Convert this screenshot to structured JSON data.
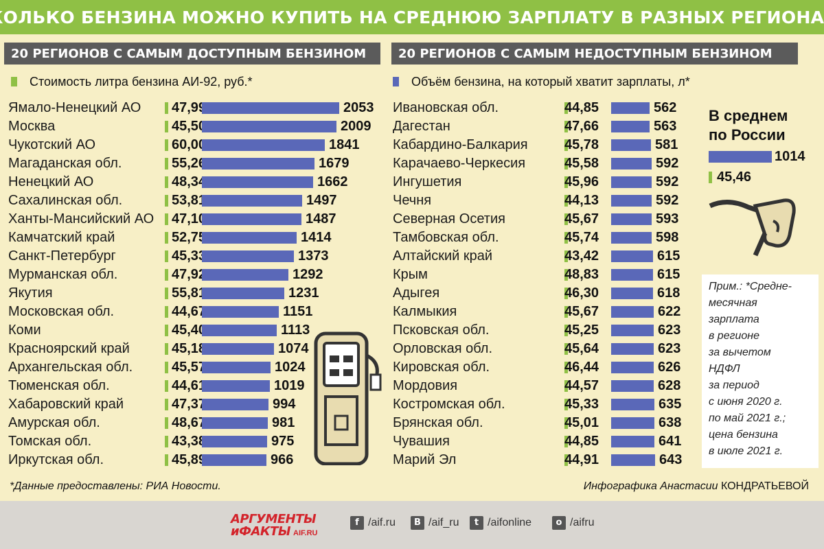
{
  "header": {
    "title": "СКОЛЬКО БЕНЗИНА МОЖНО КУПИТЬ НА СРЕДНЮЮ ЗАРПЛАТУ В РАЗНЫХ РЕГИОНАХ?"
  },
  "left_section": {
    "title": "20 РЕГИОНОВ С САМЫМ ДОСТУПНЫМ БЕНЗИНОМ"
  },
  "right_section": {
    "title": "20 РЕГИОНОВ С САМЫМ НЕДОСТУПНЫМ БЕНЗИНОМ"
  },
  "legend": {
    "price_label": "Стоимость литра бензина АИ-92, руб.*",
    "volume_label": "Объём бензина, на который хватит зарплаты, л*"
  },
  "colors": {
    "price": "#8fc045",
    "volume": "#5a68b8",
    "header": "#8fc045",
    "section": "#5b5b5b",
    "panel": "#f7efc6"
  },
  "chart_data": [
    {
      "type": "bar",
      "title": "20 РЕГИОНОВ С САМЫМ ДОСТУПНЫМ БЕНЗИНОМ",
      "categories": [
        "Ямало-Ненецкий АО",
        "Москва",
        "Чукотский АО",
        "Магаданская обл.",
        "Ненецкий АО",
        "Сахалинская обл.",
        "Ханты-Мансийский АО",
        "Камчатский край",
        "Санкт-Петербург",
        "Мурманская обл.",
        "Якутия",
        "Московская обл.",
        "Коми",
        "Красноярский край",
        "Архангельская обл.",
        "Тюменская обл.",
        "Хабаровский край",
        "Амурская обл.",
        "Томская обл.",
        "Иркутская обл."
      ],
      "series": [
        {
          "name": "Стоимость литра бензина АИ-92, руб.*",
          "values": [
            "47,99",
            "45,50",
            "60,00",
            "55,26",
            "48,34",
            "53,81",
            "47,10",
            "52,75",
            "45,33",
            "47,92",
            "55,81",
            "44,67",
            "45,40",
            "45,18",
            "45,57",
            "44,61",
            "47,37",
            "48,67",
            "43,38",
            "45,89"
          ]
        },
        {
          "name": "Объём бензина, на который хватит зарплаты, л*",
          "values": [
            2053,
            2009,
            1841,
            1679,
            1662,
            1497,
            1487,
            1414,
            1373,
            1292,
            1231,
            1151,
            1113,
            1074,
            1024,
            1019,
            994,
            981,
            975,
            966
          ]
        }
      ]
    },
    {
      "type": "bar",
      "title": "20 РЕГИОНОВ С САМЫМ НЕДОСТУПНЫМ БЕНЗИНОМ",
      "categories": [
        "Ивановская обл.",
        "Дагестан",
        "Кабардино-Балкария",
        "Карачаево-Черкесия",
        "Ингушетия",
        "Чечня",
        "Северная Осетия",
        "Тамбовская обл.",
        "Алтайский край",
        "Крым",
        "Адыгея",
        "Калмыкия",
        "Псковская обл.",
        "Орловская обл.",
        "Кировская обл.",
        "Мордовия",
        "Костромская обл.",
        "Брянская обл.",
        "Чувашия",
        "Марий Эл"
      ],
      "series": [
        {
          "name": "Стоимость литра бензина АИ-92, руб.*",
          "values": [
            "44,85",
            "47,66",
            "45,78",
            "45,58",
            "45,96",
            "44,13",
            "45,67",
            "45,74",
            "43,42",
            "48,83",
            "46,30",
            "45,67",
            "45,25",
            "45,64",
            "46,44",
            "44,57",
            "45,33",
            "45,01",
            "44,85",
            "44,91"
          ]
        },
        {
          "name": "Объём бензина, на который хватит зарплаты, л*",
          "values": [
            562,
            563,
            581,
            592,
            592,
            592,
            593,
            598,
            615,
            615,
            618,
            622,
            623,
            623,
            626,
            628,
            635,
            638,
            641,
            643
          ]
        }
      ]
    }
  ],
  "average": {
    "title": "В среднем\nпо России",
    "volume": "1014",
    "price": "45,46"
  },
  "note": "Прим.: *Средне-\nмесячная\nзарплата\nв регионе\nза вычетом\nНДФЛ\nза период\nс июня 2020 г.\nпо май 2021 г.;\nцена бензина\nв июле 2021 г.",
  "source": "*Данные предоставлены: РИА Новости.",
  "credit_prefix": "Инфографика Анастасии ",
  "credit_name": "КОНДРАТЬЕВОЙ",
  "footer": {
    "logo_top": "АРГУМЕНТЫ",
    "logo_bottom": "иФАКТЫ",
    "logo_site": "AIF.RU",
    "social": [
      {
        "icon": "facebook-icon",
        "glyph": "f",
        "label": "/aif.ru"
      },
      {
        "icon": "vk-icon",
        "glyph": "В",
        "label": "/aif_ru"
      },
      {
        "icon": "twitter-icon",
        "glyph": "t",
        "label": "/aifonline"
      },
      {
        "icon": "odnoklassniki-icon",
        "glyph": "о",
        "label": "/aifru"
      }
    ]
  }
}
